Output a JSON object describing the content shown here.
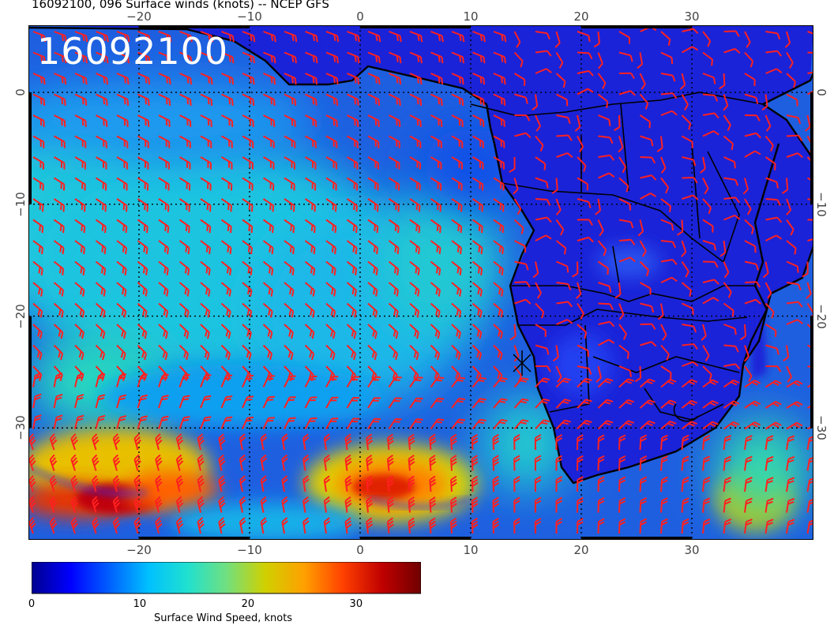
{
  "title": "16092100, 096 Surface winds (knots) -- NCEP GFS",
  "date_overlay": "16092100",
  "axes": {
    "lon_ticks": [
      "−20",
      "−10",
      "0",
      "10",
      "20",
      "30"
    ],
    "lat_ticks": [
      "0",
      "−10",
      "−20",
      "−30"
    ],
    "lon_range": [
      -30,
      41
    ],
    "lat_range": [
      -40,
      6
    ]
  },
  "colorbar": {
    "label": "Surface Wind Speed, knots",
    "ticks": [
      "0",
      "10",
      "20",
      "30"
    ],
    "range": [
      0,
      36
    ],
    "stops": [
      "#00008f",
      "#0000ff",
      "#0060ff",
      "#00c0ff",
      "#20e0d0",
      "#70e080",
      "#d0d000",
      "#ffa000",
      "#ff4000",
      "#c00000",
      "#700000"
    ]
  },
  "colors": {
    "barb": "#ff2020",
    "coast": "#000000",
    "land": "#1a23d8",
    "ocean_base": "#1e5fe0"
  },
  "icons": [
    "wind-barb-icon",
    "marker-x-icon"
  ]
}
